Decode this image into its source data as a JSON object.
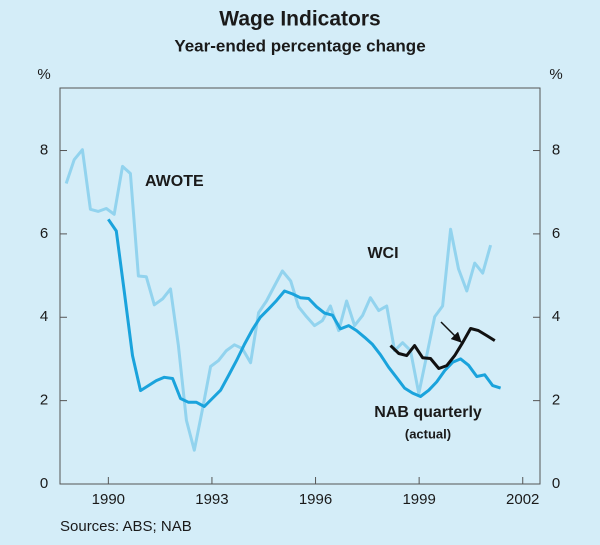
{
  "chart_data": {
    "type": "line",
    "title": "Wage Indicators",
    "subtitle": "Year-ended percentage change",
    "y_unit": "%",
    "y2_unit": "%",
    "source": "Sources: ABS; NAB",
    "xlim": [
      1988.6,
      2002.5
    ],
    "xticks": [
      1990,
      1993,
      1996,
      1999,
      2002
    ],
    "ylim": [
      0,
      9.5
    ],
    "yticks": [
      0,
      2,
      4,
      6,
      8
    ],
    "y2lim": [
      0,
      9.5
    ],
    "y2ticks": [
      0,
      2,
      4,
      6,
      8
    ],
    "annotations": [
      "AWOTE",
      "WCI",
      "NAB quarterly",
      "(actual)"
    ],
    "series": [
      {
        "name": "AWOTE",
        "color": "#92d3ee",
        "x": [
          1988.78,
          1989.01,
          1989.25,
          1989.48,
          1989.71,
          1989.94,
          1990.17,
          1990.41,
          1990.64,
          1990.87,
          1991.1,
          1991.33,
          1991.57,
          1991.8,
          1992.03,
          1992.26,
          1992.49,
          1992.72,
          1992.96,
          1993.19,
          1993.42,
          1993.65,
          1993.88,
          1994.12,
          1994.35,
          1994.58,
          1994.81,
          1995.04,
          1995.28,
          1995.51,
          1995.74,
          1995.97,
          1996.2,
          1996.43,
          1996.67,
          1996.9,
          1997.13,
          1997.36,
          1997.59,
          1997.83,
          1998.06,
          1998.29,
          1998.52,
          1998.75,
          1998.99,
          1999.22,
          1999.45,
          1999.68,
          1999.91,
          2000.14,
          2000.38,
          2000.61,
          2000.84,
          2001.07
        ],
        "values": [
          7.21,
          7.78,
          8.02,
          6.59,
          6.54,
          6.61,
          6.47,
          7.62,
          7.45,
          4.99,
          4.97,
          4.3,
          4.44,
          4.68,
          3.32,
          1.53,
          0.81,
          1.77,
          2.82,
          2.96,
          3.2,
          3.34,
          3.25,
          2.91,
          4.11,
          4.39,
          4.75,
          5.11,
          4.87,
          4.25,
          4.01,
          3.8,
          3.92,
          4.27,
          3.68,
          4.39,
          3.8,
          4.04,
          4.47,
          4.16,
          4.27,
          3.2,
          3.39,
          3.2,
          2.17,
          3.08,
          4.01,
          4.27,
          6.11,
          5.16,
          4.63,
          5.3,
          5.06,
          5.73
        ]
      },
      {
        "name": "NAB quarterly",
        "color": "#1aa3dc",
        "x": [
          1990.0,
          1990.23,
          1990.46,
          1990.7,
          1990.93,
          1991.16,
          1991.39,
          1991.62,
          1991.86,
          1992.09,
          1992.32,
          1992.55,
          1992.78,
          1993.01,
          1993.25,
          1993.48,
          1993.71,
          1993.94,
          1994.17,
          1994.4,
          1994.64,
          1994.87,
          1995.1,
          1995.33,
          1995.56,
          1995.8,
          1996.03,
          1996.26,
          1996.49,
          1996.72,
          1996.96,
          1997.19,
          1997.42,
          1997.65,
          1997.88,
          1998.12,
          1998.35,
          1998.58,
          1998.81,
          1999.04,
          1999.28,
          1999.51,
          1999.74,
          1999.97,
          2000.2,
          2000.43,
          2000.67,
          2000.9,
          2001.13,
          2001.36
        ],
        "values": [
          6.35,
          6.07,
          4.63,
          3.08,
          2.24,
          2.36,
          2.48,
          2.56,
          2.53,
          2.05,
          1.96,
          1.96,
          1.86,
          2.05,
          2.25,
          2.6,
          2.96,
          3.35,
          3.7,
          4.0,
          4.2,
          4.4,
          4.63,
          4.56,
          4.47,
          4.45,
          4.25,
          4.1,
          4.05,
          3.72,
          3.8,
          3.68,
          3.52,
          3.35,
          3.1,
          2.8,
          2.55,
          2.3,
          2.18,
          2.1,
          2.25,
          2.45,
          2.72,
          2.92,
          3.0,
          2.85,
          2.58,
          2.62,
          2.36,
          2.3
        ]
      },
      {
        "name": "WCI",
        "color": "#111111",
        "x": [
          1998.17,
          1998.41,
          1998.64,
          1998.87,
          1999.1,
          1999.33,
          1999.57,
          1999.8,
          2000.03,
          2000.26,
          2000.49,
          2000.72,
          2000.96,
          2001.19
        ],
        "values": [
          3.32,
          3.13,
          3.08,
          3.32,
          3.03,
          3.01,
          2.77,
          2.84,
          3.08,
          3.39,
          3.73,
          3.68,
          3.56,
          3.44
        ]
      }
    ]
  }
}
